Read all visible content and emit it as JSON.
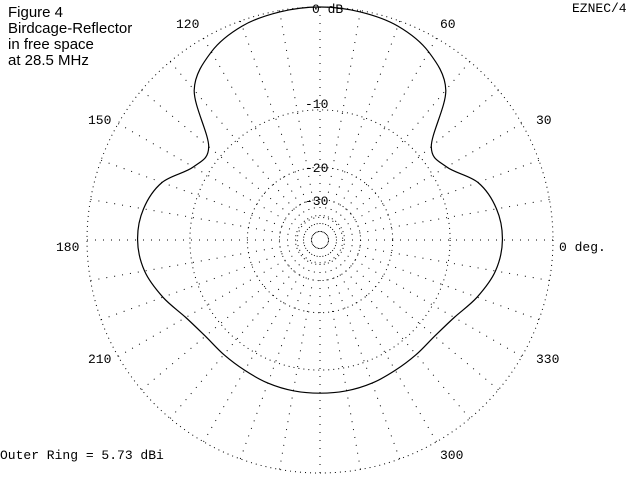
{
  "caption": {
    "line1": "Figure 4",
    "line2": "Birdcage-Reflector",
    "line3": "in free space",
    "line4": "at 28.5 MHz"
  },
  "brand": "EZNEC/4",
  "footer": "Outer Ring = 5.73 dBi",
  "chart_data": {
    "type": "polar",
    "grid": true,
    "ring_labels": [
      "0 dB",
      "-10",
      "-20",
      "-30"
    ],
    "ring_levels_db": [
      0,
      -10,
      -20,
      -30,
      -40
    ],
    "angle_labels": [
      {
        "deg": 0,
        "text": "0 deg."
      },
      {
        "deg": 30,
        "text": "30"
      },
      {
        "deg": 60,
        "text": "60"
      },
      {
        "deg": 120,
        "text": "120"
      },
      {
        "deg": 150,
        "text": "150"
      },
      {
        "deg": 180,
        "text": "180"
      },
      {
        "deg": 210,
        "text": "210"
      },
      {
        "deg": 300,
        "text": "300"
      },
      {
        "deg": 330,
        "text": "330"
      }
    ],
    "outer_ring_dbi": 5.73,
    "pattern": {
      "angles_deg": [
        0,
        10,
        20,
        30,
        40,
        50,
        60,
        70,
        80,
        90,
        100,
        110,
        120,
        130,
        140,
        150,
        160,
        170,
        180,
        190,
        200,
        210,
        220,
        230,
        240,
        250,
        260,
        270,
        280,
        290,
        300,
        310,
        320,
        330,
        340,
        350
      ],
      "gain_db": [
        -4.2,
        -4.5,
        -5.6,
        -8.0,
        -8.1,
        -3.0,
        -1.2,
        -0.4,
        -0.1,
        0,
        -0.1,
        -0.4,
        -1.2,
        -3.0,
        -8.1,
        -8.0,
        -5.6,
        -4.5,
        -4.2,
        -4.6,
        -5.7,
        -7.0,
        -7.6,
        -7.6,
        -7.5,
        -7.3,
        -7.2,
        -7.2,
        -7.2,
        -7.3,
        -7.5,
        -7.6,
        -7.6,
        -7.0,
        -5.7,
        -4.6
      ]
    }
  }
}
